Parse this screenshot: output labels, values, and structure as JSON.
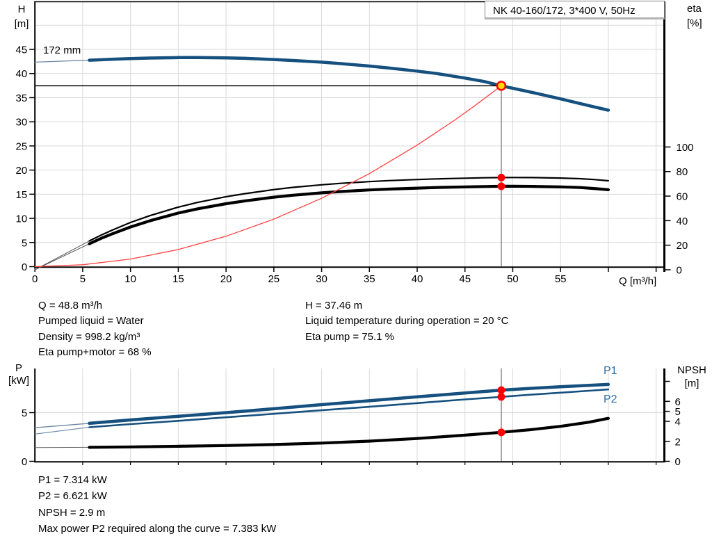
{
  "title_box": {
    "label": "NK 40-160/172, 3*400 V, 50Hz"
  },
  "top_chart": {
    "impeller_label": "172 mm",
    "left_axis_title_1": "H",
    "left_axis_title_2": "[m]",
    "right_axis_title_1": "eta",
    "right_axis_title_2": "[%]",
    "x_axis_title": "Q [m³/h]"
  },
  "bottom_chart": {
    "left_axis_title_1": "P",
    "left_axis_title_2": "[kW]",
    "right_axis_title_1": "NPSH",
    "right_axis_title_2": "[m]",
    "p1_label": "P1",
    "p2_label": "P2"
  },
  "results_top": {
    "q": "Q = 48.8 m³/h",
    "pumped_liquid": "Pumped liquid = Water",
    "density": "Density = 998.2 kg/m³",
    "eta_pump_motor": "Eta pump+motor = 68 %",
    "h": "H = 37.46 m",
    "liquid_temp": "Liquid temperature during operation = 20 °C",
    "eta_pump": "Eta pump = 75.1 %"
  },
  "results_bottom": {
    "p1": "P1 = 7.314 kW",
    "p2": "P2 = 6.621 kW",
    "npsh": "NPSH = 2.9 m",
    "max_p2": "Max power P2 required along the curve = 7.383 kW"
  },
  "colors": {
    "curve_blue": "#15507f",
    "label_blue": "#2e6da4",
    "red": "#ff0000",
    "system_red": "#ff4040",
    "yellow": "#ffe000",
    "grid": "#d9d9d9",
    "guide_gray": "#888888",
    "black": "#000000"
  },
  "chart_data": [
    {
      "type": "line",
      "title": "NK 40-160/172, 3*400 V, 50Hz",
      "xlabel": "Q [m³/h]",
      "ylabel": "H [m]",
      "y2label": "eta [%]",
      "xlim": [
        0,
        66
      ],
      "ylim": [
        0,
        55
      ],
      "y2lim": [
        0,
        110
      ],
      "grid": true,
      "x_ticks": [
        0,
        5,
        10,
        15,
        20,
        25,
        30,
        35,
        40,
        45,
        50,
        55
      ],
      "x_ticks_unlabeled": [
        60,
        65
      ],
      "y_ticks": [
        0,
        5,
        10,
        15,
        20,
        25,
        30,
        35,
        40,
        45
      ],
      "y2_ticks": [
        0,
        20,
        40,
        60,
        80,
        100
      ],
      "series": [
        {
          "name": "head-curve-lead",
          "axis": "H",
          "points": [
            [
              0,
              42.35
            ],
            [
              2,
              42.5
            ],
            [
              4,
              42.65
            ],
            [
              5.7,
              42.75
            ]
          ]
        },
        {
          "name": "head-curve",
          "axis": "H",
          "points": [
            [
              5.7,
              42.75
            ],
            [
              8,
              42.95
            ],
            [
              10,
              43.1
            ],
            [
              12,
              43.2
            ],
            [
              15,
              43.3
            ],
            [
              17,
              43.32
            ],
            [
              20,
              43.25
            ],
            [
              22,
              43.15
            ],
            [
              25,
              42.9
            ],
            [
              27,
              42.7
            ],
            [
              30,
              42.35
            ],
            [
              32,
              42.05
            ],
            [
              35,
              41.55
            ],
            [
              37,
              41.15
            ],
            [
              40,
              40.5
            ],
            [
              42,
              40.0
            ],
            [
              45,
              39.05
            ],
            [
              47,
              38.35
            ],
            [
              48.8,
              37.46
            ],
            [
              50,
              36.95
            ],
            [
              52,
              36.1
            ],
            [
              55,
              34.75
            ],
            [
              57,
              33.8
            ],
            [
              58.5,
              33.1
            ],
            [
              60,
              32.4
            ]
          ]
        },
        {
          "name": "eta-pump-curve-lead",
          "axis": "eta",
          "points": [
            [
              0,
              0
            ],
            [
              5.7,
              23.5
            ]
          ]
        },
        {
          "name": "eta-pump-curve",
          "axis": "eta",
          "points": [
            [
              5.7,
              23.5
            ],
            [
              7,
              28.5
            ],
            [
              8,
              32
            ],
            [
              10,
              38.5
            ],
            [
              12,
              44
            ],
            [
              15,
              51
            ],
            [
              17,
              54.8
            ],
            [
              20,
              59.5
            ],
            [
              22,
              62
            ],
            [
              25,
              65.3
            ],
            [
              27,
              67.1
            ],
            [
              30,
              69.2
            ],
            [
              32,
              70.4
            ],
            [
              35,
              71.8
            ],
            [
              37,
              72.6
            ],
            [
              40,
              73.5
            ],
            [
              42,
              74
            ],
            [
              45,
              74.6
            ],
            [
              47,
              74.9
            ],
            [
              48.8,
              75.1
            ],
            [
              50,
              75.15
            ],
            [
              52,
              75.1
            ],
            [
              55,
              74.7
            ],
            [
              57,
              74.2
            ],
            [
              58.5,
              73.5
            ],
            [
              60,
              72.5
            ]
          ]
        },
        {
          "name": "eta-pump-motor-curve-lead",
          "axis": "eta",
          "points": [
            [
              0,
              0
            ],
            [
              5.7,
              21.2
            ]
          ]
        },
        {
          "name": "eta-pump-motor-curve",
          "axis": "eta",
          "points": [
            [
              5.7,
              21.2
            ],
            [
              7,
              25.8
            ],
            [
              8,
              29
            ],
            [
              10,
              34.8
            ],
            [
              12,
              39.8
            ],
            [
              15,
              46.2
            ],
            [
              17,
              49.6
            ],
            [
              20,
              53.8
            ],
            [
              22,
              56.1
            ],
            [
              25,
              59.1
            ],
            [
              27,
              60.7
            ],
            [
              30,
              62.6
            ],
            [
              32,
              63.7
            ],
            [
              35,
              65
            ],
            [
              37,
              65.7
            ],
            [
              40,
              66.5
            ],
            [
              42,
              67
            ],
            [
              45,
              67.5
            ],
            [
              47,
              67.8
            ],
            [
              48.8,
              68
            ],
            [
              50,
              68
            ],
            [
              52,
              67.9
            ],
            [
              55,
              67.5
            ],
            [
              57,
              67
            ],
            [
              58.5,
              66.2
            ],
            [
              60,
              65.2
            ]
          ]
        },
        {
          "name": "system-curve",
          "axis": "H",
          "points": [
            [
              0,
              0
            ],
            [
              5,
              0.39
            ],
            [
              10,
              1.57
            ],
            [
              15,
              3.54
            ],
            [
              20,
              6.29
            ],
            [
              25,
              9.83
            ],
            [
              30,
              14.15
            ],
            [
              35,
              19.27
            ],
            [
              40,
              25.17
            ],
            [
              44,
              30.46
            ],
            [
              46,
              33.3
            ],
            [
              48.8,
              37.46
            ]
          ]
        }
      ],
      "duty_point": {
        "q": 48.8,
        "h": 37.46,
        "eta_pump": 75.1,
        "eta_pump_motor": 68
      }
    },
    {
      "type": "line",
      "xlabel": "",
      "ylabel": "P [kW]",
      "y2label": "NPSH [m]",
      "xlim": [
        0,
        66
      ],
      "ylim": [
        0,
        9.5
      ],
      "y2lim": [
        0,
        8
      ],
      "grid": true,
      "y_ticks": [
        0,
        5
      ],
      "y2_ticks": [
        0,
        2,
        4,
        5,
        6
      ],
      "y2_ticks_unlabeled": [
        8
      ],
      "series": [
        {
          "name": "p1-curve-lead",
          "axis": "P",
          "points": [
            [
              0,
              3.45
            ],
            [
              5.7,
              3.9
            ]
          ]
        },
        {
          "name": "p1-curve",
          "axis": "P",
          "points": [
            [
              5.7,
              3.9
            ],
            [
              10,
              4.25
            ],
            [
              15,
              4.62
            ],
            [
              20,
              5.0
            ],
            [
              25,
              5.4
            ],
            [
              30,
              5.82
            ],
            [
              35,
              6.22
            ],
            [
              40,
              6.62
            ],
            [
              45,
              7.02
            ],
            [
              48.8,
              7.314
            ],
            [
              52,
              7.5
            ],
            [
              55,
              7.66
            ],
            [
              58,
              7.8
            ],
            [
              60,
              7.9
            ]
          ]
        },
        {
          "name": "p2-curve-lead",
          "axis": "P",
          "points": [
            [
              0,
              2.8
            ],
            [
              5.7,
              3.5
            ]
          ]
        },
        {
          "name": "p2-curve",
          "axis": "P",
          "points": [
            [
              5.7,
              3.5
            ],
            [
              10,
              3.82
            ],
            [
              15,
              4.16
            ],
            [
              20,
              4.52
            ],
            [
              25,
              4.88
            ],
            [
              30,
              5.24
            ],
            [
              35,
              5.6
            ],
            [
              40,
              5.98
            ],
            [
              45,
              6.36
            ],
            [
              48.8,
              6.621
            ],
            [
              52,
              6.85
            ],
            [
              55,
              7.05
            ],
            [
              58,
              7.25
            ],
            [
              60,
              7.383
            ]
          ]
        },
        {
          "name": "npsh-curve-lead",
          "axis": "NPSH",
          "points": [
            [
              0,
              1.38
            ],
            [
              5.7,
              1.4
            ]
          ]
        },
        {
          "name": "npsh-curve",
          "axis": "NPSH",
          "points": [
            [
              5.7,
              1.4
            ],
            [
              10,
              1.44
            ],
            [
              15,
              1.5
            ],
            [
              20,
              1.58
            ],
            [
              25,
              1.68
            ],
            [
              30,
              1.82
            ],
            [
              35,
              2.02
            ],
            [
              40,
              2.28
            ],
            [
              45,
              2.62
            ],
            [
              48.8,
              2.9
            ],
            [
              52,
              3.18
            ],
            [
              55,
              3.5
            ],
            [
              58,
              3.92
            ],
            [
              60,
              4.3
            ]
          ]
        }
      ],
      "duty_point": {
        "q": 48.8,
        "p1": 7.314,
        "p2": 6.621,
        "npsh": 2.9
      }
    }
  ]
}
